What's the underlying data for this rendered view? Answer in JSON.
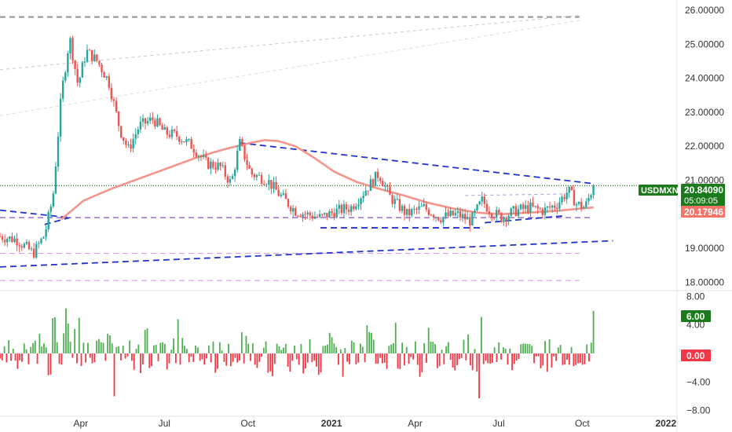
{
  "chart_data": [
    {
      "type": "candlestick",
      "symbol": "USDMXN",
      "last_price": "20.84090",
      "countdown": "05:09:05",
      "moving_average_value": "20.17946",
      "ylim": [
        17.8,
        26.3
      ],
      "y_ticks": [
        "26.00000",
        "25.00000",
        "24.00000",
        "23.00000",
        "22.00000",
        "21.00000",
        "20.00000",
        "19.00000",
        "18.00000"
      ],
      "y_tick_values": [
        26,
        25,
        24,
        23,
        22,
        21,
        20,
        19,
        18
      ],
      "x_ticks": [
        {
          "label": "Apr",
          "t": 2.9
        },
        {
          "label": "Jul",
          "t": 5.9
        },
        {
          "label": "Oct",
          "t": 8.9
        },
        {
          "label": "2021",
          "t": 11.9
        },
        {
          "label": "Apr",
          "t": 14.9
        },
        {
          "label": "Jul",
          "t": 17.9
        },
        {
          "label": "Oct",
          "t": 20.9
        },
        {
          "label": "2022",
          "t": 23.9
        }
      ],
      "price_keypoints": [
        [
          0.0,
          19.35
        ],
        [
          0.6,
          19.25
        ],
        [
          1.2,
          18.85
        ],
        [
          1.6,
          19.4
        ],
        [
          1.9,
          20.5
        ],
        [
          2.2,
          23.5
        ],
        [
          2.5,
          25.2
        ],
        [
          2.8,
          23.8
        ],
        [
          3.1,
          24.8
        ],
        [
          3.5,
          24.5
        ],
        [
          3.9,
          23.9
        ],
        [
          4.3,
          22.5
        ],
        [
          4.6,
          21.9
        ],
        [
          5.0,
          22.6
        ],
        [
          5.5,
          22.8
        ],
        [
          5.9,
          22.4
        ],
        [
          6.4,
          22.3
        ],
        [
          6.9,
          22.0
        ],
        [
          7.4,
          21.5
        ],
        [
          7.9,
          21.4
        ],
        [
          8.3,
          20.9
        ],
        [
          8.6,
          22.1
        ],
        [
          9.0,
          21.2
        ],
        [
          9.6,
          21.0
        ],
        [
          10.0,
          20.6
        ],
        [
          10.6,
          20.1
        ],
        [
          11.0,
          20.0
        ],
        [
          11.5,
          19.9
        ],
        [
          12.1,
          20.1
        ],
        [
          12.6,
          20.2
        ],
        [
          13.2,
          20.8
        ],
        [
          13.6,
          21.2
        ],
        [
          14.0,
          20.5
        ],
        [
          14.6,
          20.0
        ],
        [
          15.2,
          20.2
        ],
        [
          15.8,
          19.9
        ],
        [
          16.4,
          20.0
        ],
        [
          16.9,
          19.8
        ],
        [
          17.3,
          20.4
        ],
        [
          17.6,
          20.1
        ],
        [
          18.0,
          19.9
        ],
        [
          18.5,
          20.1
        ],
        [
          19.0,
          20.2
        ],
        [
          19.5,
          20.1
        ],
        [
          20.0,
          20.3
        ],
        [
          20.4,
          20.7
        ],
        [
          20.7,
          20.3
        ],
        [
          21.0,
          20.2
        ],
        [
          21.3,
          20.84
        ]
      ],
      "moving_average_keypoints": [
        [
          2.2,
          19.85
        ],
        [
          3.0,
          20.4
        ],
        [
          4.0,
          20.75
        ],
        [
          5.0,
          21.05
        ],
        [
          6.0,
          21.35
        ],
        [
          7.0,
          21.65
        ],
        [
          8.0,
          21.9
        ],
        [
          9.0,
          22.1
        ],
        [
          9.5,
          22.18
        ],
        [
          10.0,
          22.15
        ],
        [
          10.6,
          22.0
        ],
        [
          11.2,
          21.7
        ],
        [
          12.0,
          21.25
        ],
        [
          12.8,
          20.95
        ],
        [
          13.6,
          20.75
        ],
        [
          14.5,
          20.55
        ],
        [
          15.3,
          20.35
        ],
        [
          16.2,
          20.18
        ],
        [
          17.1,
          20.05
        ],
        [
          18.0,
          20.0
        ],
        [
          19.0,
          20.05
        ],
        [
          20.0,
          20.1
        ],
        [
          20.6,
          20.15
        ],
        [
          21.3,
          20.2
        ]
      ],
      "horizontal_levels": [
        {
          "name": "upper-gray-level",
          "value": 25.8,
          "t0": 0.0,
          "t1": 20.8,
          "color": "#a0a0a0",
          "style": "dash"
        },
        {
          "name": "purple-support-level",
          "value": 19.9,
          "t0": 0.0,
          "t1": 21.3,
          "color": "#7b3fb5",
          "style": "dash"
        },
        {
          "name": "pink-level-upper",
          "value": 18.85,
          "t0": 0.0,
          "t1": 20.8,
          "color": "#d59fe0",
          "style": "dash"
        },
        {
          "name": "pink-level-lower",
          "value": 18.05,
          "t0": 0.0,
          "t1": 20.8,
          "color": "#d59fe0",
          "style": "dash"
        },
        {
          "name": "last-price-level",
          "value": 20.8409,
          "t0": 0.0,
          "t1": 25.3,
          "color": "#1b7a1b",
          "style": "dot"
        }
      ],
      "trend_lines": [
        {
          "name": "descending-trendline",
          "points": [
            [
              8.6,
              22.1
            ],
            [
              21.3,
              20.9
            ]
          ],
          "color": "#2233cc",
          "style": "dash"
        },
        {
          "name": "base-support-line",
          "points": [
            [
              11.5,
              19.6
            ],
            [
              17.3,
              19.6
            ]
          ],
          "color": "#2233cc",
          "style": "dash"
        },
        {
          "name": "rising-support-line",
          "points": [
            [
              17.4,
              19.75
            ],
            [
              20.2,
              19.95
            ]
          ],
          "color": "#2233cc",
          "style": "dash"
        },
        {
          "name": "long-uptrend-line",
          "points": [
            [
              0.0,
              18.45
            ],
            [
              22.0,
              19.22
            ]
          ],
          "color": "#2233cc",
          "style": "dash"
        },
        {
          "name": "left-descending-line",
          "points": [
            [
              0.0,
              20.12
            ],
            [
              2.5,
              19.9
            ]
          ],
          "color": "#2233cc",
          "style": "dash"
        },
        {
          "name": "left-lower-line",
          "points": [
            [
              1.6,
              19.7
            ],
            [
              2.5,
              19.9
            ]
          ],
          "color": "#2233cc",
          "style": "dash"
        },
        {
          "name": "faint-trendline-1",
          "points": [
            [
              0.0,
              24.25
            ],
            [
              20.8,
              25.85
            ]
          ],
          "color": "#c8c8c8",
          "style": "dash"
        },
        {
          "name": "faint-trendline-2",
          "points": [
            [
              0.0,
              22.9
            ],
            [
              20.8,
              25.7
            ]
          ],
          "color": "#dddddd",
          "style": "dash"
        },
        {
          "name": "faint-inner-line",
          "points": [
            [
              16.7,
              20.55
            ],
            [
              20.5,
              20.6
            ]
          ],
          "color": "#9aa0e0",
          "style": "dash"
        }
      ]
    },
    {
      "type": "histogram",
      "ylim": [
        -8.6,
        8.6
      ],
      "y_ticks": [
        "8.00",
        "4.00",
        "−4.00",
        "−8.00"
      ],
      "y_tick_values": [
        8,
        4,
        -4,
        -8
      ],
      "last_value": "6.00",
      "zero_value": "0.00",
      "colors": {
        "positive": "#4caf50",
        "negative": "#f23645"
      },
      "positive_peaks": [
        [
          0.3,
          2.5
        ],
        [
          1.4,
          4
        ],
        [
          1.9,
          7
        ],
        [
          2.4,
          8
        ],
        [
          2.8,
          7
        ],
        [
          3.4,
          5
        ],
        [
          3.9,
          6
        ],
        [
          4.6,
          4
        ],
        [
          5.2,
          6
        ],
        [
          5.7,
          4
        ],
        [
          6.4,
          6
        ],
        [
          7.2,
          3
        ],
        [
          7.7,
          5
        ],
        [
          8.4,
          5
        ],
        [
          8.7,
          6
        ],
        [
          9.6,
          4
        ],
        [
          10.4,
          4
        ],
        [
          11.2,
          3
        ],
        [
          11.8,
          4
        ],
        [
          12.6,
          5
        ],
        [
          13.2,
          6
        ],
        [
          13.6,
          7
        ],
        [
          14.2,
          5
        ],
        [
          14.8,
          4
        ],
        [
          15.4,
          4
        ],
        [
          16.2,
          3
        ],
        [
          16.8,
          5
        ],
        [
          17.3,
          6
        ],
        [
          17.9,
          4
        ],
        [
          18.5,
          5
        ],
        [
          19.1,
          3
        ],
        [
          19.7,
          5
        ],
        [
          20.3,
          5
        ],
        [
          20.7,
          4
        ],
        [
          21.3,
          6
        ]
      ],
      "negative_peaks": [
        [
          0.6,
          -2.5
        ],
        [
          1.2,
          -5
        ],
        [
          1.8,
          -4
        ],
        [
          2.4,
          -2
        ],
        [
          3.0,
          -3
        ],
        [
          3.6,
          -5
        ],
        [
          4.1,
          -7
        ],
        [
          4.9,
          -6
        ],
        [
          5.4,
          -5
        ],
        [
          5.9,
          -4
        ],
        [
          6.6,
          -5
        ],
        [
          7.1,
          -3
        ],
        [
          7.8,
          -5
        ],
        [
          8.2,
          -3
        ],
        [
          9.1,
          -4
        ],
        [
          9.7,
          -6
        ],
        [
          10.3,
          -5
        ],
        [
          10.9,
          -4
        ],
        [
          11.5,
          -5
        ],
        [
          12.3,
          -5
        ],
        [
          13.0,
          -3
        ],
        [
          13.4,
          -4
        ],
        [
          13.9,
          -3
        ],
        [
          14.4,
          -5
        ],
        [
          15.1,
          -6
        ],
        [
          15.7,
          -5
        ],
        [
          16.3,
          -3
        ],
        [
          16.9,
          -4
        ],
        [
          17.2,
          -7
        ],
        [
          17.7,
          -3
        ],
        [
          18.3,
          -5
        ],
        [
          18.9,
          -4
        ],
        [
          19.6,
          -7
        ],
        [
          20.1,
          -3
        ],
        [
          20.6,
          -4
        ],
        [
          21.0,
          -2
        ]
      ]
    }
  ]
}
